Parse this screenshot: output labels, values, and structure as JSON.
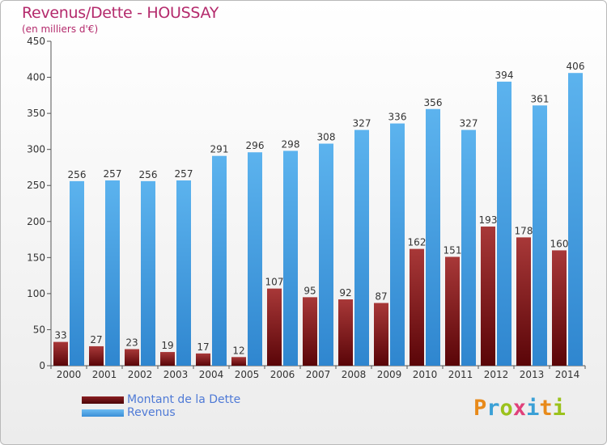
{
  "title": "Revenus/Dette - HOUSSAY",
  "subtitle": "(en milliers d'€)",
  "logo": {
    "text": "Proxiti",
    "colors": [
      "#e88a1a",
      "#3aa0d6",
      "#9bc21c",
      "#e0407a",
      "#3aa0d6",
      "#e88a1a",
      "#9bc21c"
    ]
  },
  "legend": [
    {
      "label": "Montant de la Dette",
      "color": "#6b0f12"
    },
    {
      "label": "Revenus",
      "color": "#4aa3e6"
    }
  ],
  "chart_data": {
    "type": "bar",
    "title": "Revenus/Dette - HOUSSAY",
    "ylabel": "(en milliers d'€)",
    "ylim": [
      0,
      450
    ],
    "yticks": [
      0,
      50,
      100,
      150,
      200,
      250,
      300,
      350,
      400,
      450
    ],
    "grid": false,
    "legend_position": "bottom-left",
    "categories": [
      "2000",
      "2001",
      "2002",
      "2003",
      "2004",
      "2005",
      "2006",
      "2007",
      "2008",
      "2009",
      "2010",
      "2011",
      "2012",
      "2013",
      "2014"
    ],
    "series": [
      {
        "name": "Montant de la Dette",
        "color": "#6b0f12",
        "values": [
          33,
          27,
          23,
          19,
          17,
          12,
          107,
          95,
          92,
          87,
          162,
          151,
          193,
          178,
          160
        ]
      },
      {
        "name": "Revenus",
        "color": "#4aa3e6",
        "values": [
          256,
          257,
          256,
          257,
          291,
          296,
          298,
          308,
          327,
          336,
          356,
          327,
          394,
          361,
          406
        ]
      }
    ]
  }
}
